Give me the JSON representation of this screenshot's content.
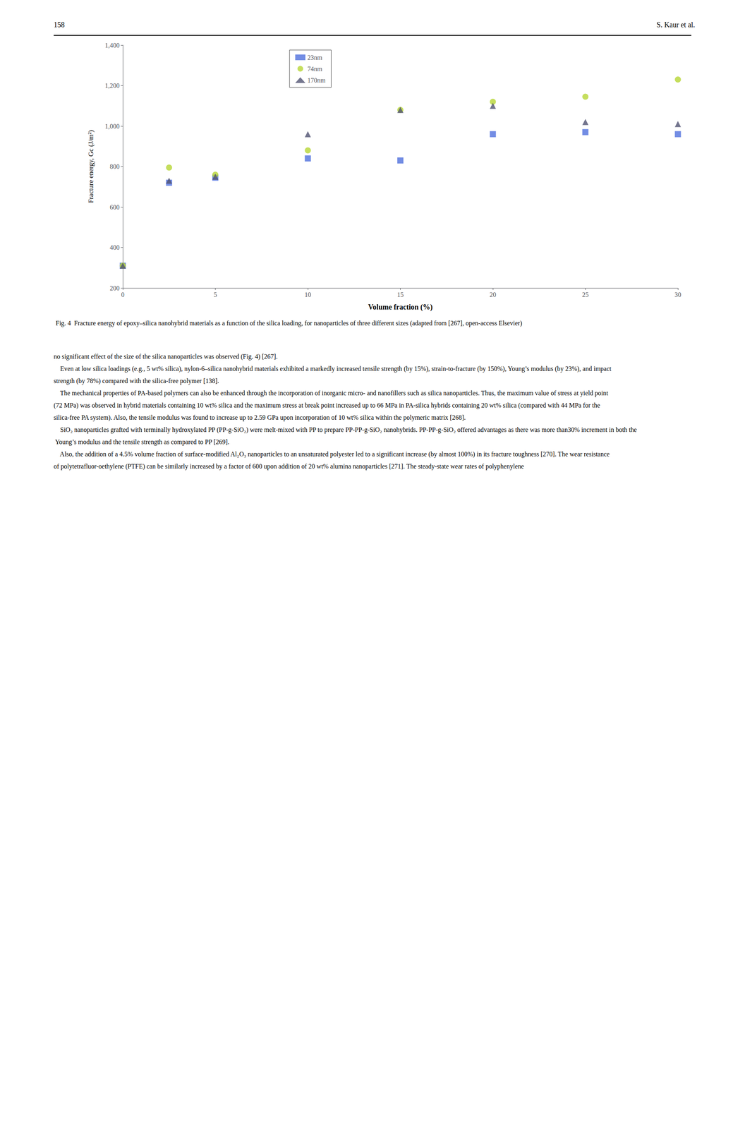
{
  "chart_data": {
    "type": "scatter",
    "title": "Fig. 4  Fracture energy of epoxy–silica nanohybrid materials as a function of the silica loading, for nanoparticles of three different sizes (adapted from [267], open-access Elsevier)",
    "xlabel": "Volume fraction (%)",
    "ylabel": "Fracture energy, Gc (J/m²)",
    "xlim": [
      0,
      30
    ],
    "ylim": [
      200,
      1400
    ],
    "xticks": [
      0,
      5,
      10,
      15,
      20,
      25,
      30
    ],
    "yticks": [
      200,
      400,
      600,
      800,
      1000,
      1200,
      1400
    ],
    "grid": false,
    "legend": "upper left",
    "series": [
      {
        "name": "23nm",
        "marker": "square",
        "x": [
          0,
          2.5,
          5,
          10,
          15,
          20,
          25,
          30
        ],
        "values": [
          310,
          720,
          745,
          840,
          830,
          960,
          970,
          960
        ]
      },
      {
        "name": "74nm",
        "marker": "circle",
        "x": [
          0,
          2.5,
          5,
          10,
          15,
          20,
          25,
          30
        ],
        "values": [
          310,
          795,
          760,
          880,
          1080,
          1120,
          1145,
          1230
        ]
      },
      {
        "name": "170nm",
        "marker": "triangle",
        "x": [
          0,
          2.5,
          5,
          10,
          15,
          20,
          25,
          30
        ],
        "values": [
          310,
          730,
          750,
          960,
          1080,
          1100,
          1020,
          1010
        ]
      }
    ],
    "annotations": [
      "158",
      "S. Kaur et al.",
      "no significant effect of the size of the silica nanoparticles was observed (Fig. 4) [267].",
      "    Even at low silica loadings (e.g., 5 wt% silica), nylon-6–silica nanohybrid materials exhibited a markedly increased tensile strength (by 15%), strain-to-fracture (by 150%), Young’s modulus (by 23%), and impact strength (by 78%) compared with the silica-free polymer [138].",
      "    The mechanical properties of PA-based polymers can also be enhanced through the incorporation of inorganic micro- and nanofillers such as silica nanoparticles. Thus, the maximum value of stress at yield point (72 MPa) was observed in hybrid materials containing 10 wt% silica and the maximum stress at break point increased up to 66 MPa in PA-silica hybrids containing 20 wt% silica (compared with 44 MPa for the silica-free PA system). Also, the tensile modulus was found to increase up to 2.59 GPa upon incorporation of 10 wt% silica within the polymeric matrix [268].",
      "    SiO₂ nanoparticles grafted with terminally hydroxylated PP (PP-g-SiO₂) were melt-mixed with PP to prepare PP-PP-g-SiO₂ nanohybrids. PP-PP-g-SiO₂ offered advantages as there was more than30% increment in both the Young’s modulus and the tensile strength as compared to PP [269].",
      "    Also, the addition of a 4.5% volume fraction of surface-modified Al₂O₃ nanoparticles to an unsaturated polyester led to a significant increase (by almost 100%) in its fracture toughness [270]. The wear resistance of polytetrafluor-oethylene (PTFE) can be similarly increased by a factor of 600 upon addition of 20 wt% alumina nanoparticles [271]. The steady-state wear rates of polyphenylene"
    ]
  }
}
